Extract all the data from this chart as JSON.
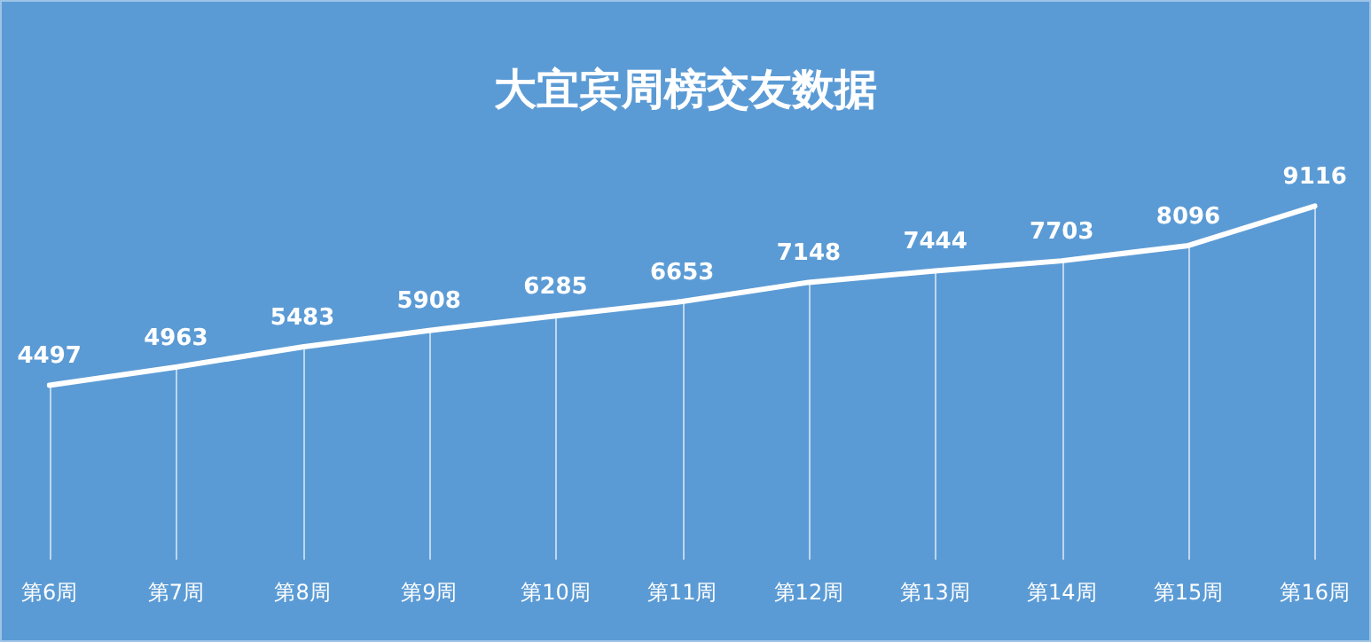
{
  "chart_data": {
    "type": "line",
    "title": "大宜宾周榜交友数据",
    "categories": [
      "第6周",
      "第7周",
      "第8周",
      "第9周",
      "第10周",
      "第11周",
      "第12周",
      "第13周",
      "第14周",
      "第15周",
      "第16周"
    ],
    "series": [
      {
        "color": "#ffffff",
        "values": [
          4497,
          4963,
          5483,
          5908,
          6285,
          6653,
          7148,
          7444,
          7703,
          8096,
          9116
        ]
      }
    ],
    "tick_labels": "x",
    "grid": "x",
    "legend": false,
    "line_style": "solid",
    "data_labels": true
  }
}
